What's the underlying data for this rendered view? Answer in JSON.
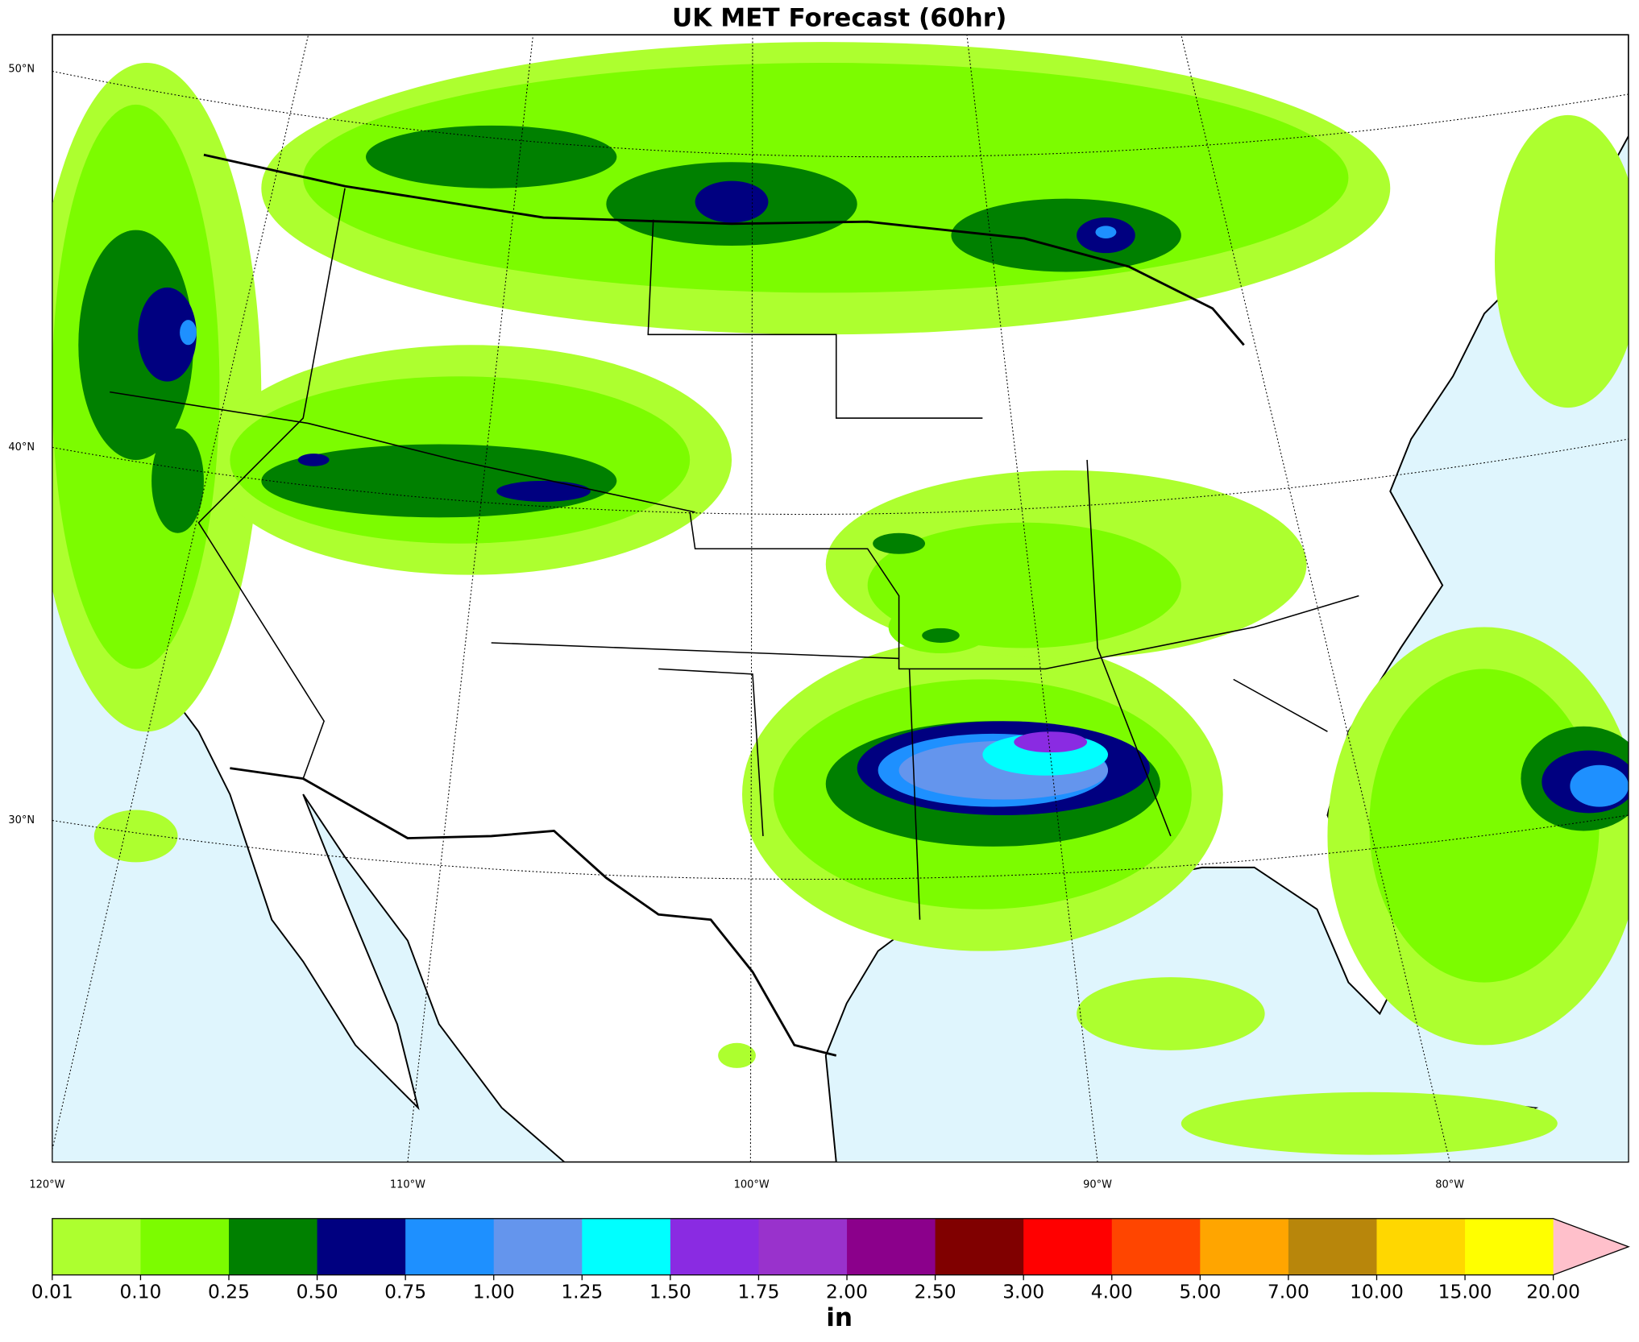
{
  "map": {
    "title": "UK MET Forecast (60hr)",
    "lat_labels": [
      "50°N",
      "40°N",
      "30°N"
    ],
    "lon_labels": [
      "120°W",
      "110°W",
      "100°W",
      "90°W",
      "80°W"
    ],
    "ocean_color": "#dff5fd",
    "land_color": "#ffffff"
  },
  "colorbar": {
    "ticks": [
      0.01,
      {
        "value": 0.1,
        "label": "0.10"
      },
      0.25,
      {
        "value": 0.5,
        "label": "0.50"
      },
      0.75,
      {
        "value": 1,
        "label": "1.00"
      },
      1.25,
      {
        "value": 1.5,
        "label": "1.50"
      },
      1.75,
      {
        "value": 2,
        "label": "2.00"
      },
      {
        "value": 2.5,
        "label": "2.50"
      },
      {
        "value": 3,
        "label": "3.00"
      },
      {
        "value": 4,
        "label": "4.00"
      },
      {
        "value": 5,
        "label": "5.00"
      },
      {
        "value": 7,
        "label": "7.00"
      },
      {
        "value": 10,
        "label": "10.00"
      },
      {
        "value": 15,
        "label": "15.00"
      },
      {
        "value": 20,
        "label": "20.00"
      }
    ],
    "colors": [
      "#adff2f",
      "#7cfc00",
      "#008000",
      "#000080",
      "#1e90ff",
      "#6495ed",
      "#00ffff",
      "#8a2be2",
      "#9932cc",
      "#8b008b",
      "#800000",
      "#ff0000",
      "#ff4500",
      "#ffa500",
      "#b8860b",
      "#ffd700",
      "#ffff00"
    ],
    "extend_color": "#ffc0cb",
    "unit": "in"
  }
}
